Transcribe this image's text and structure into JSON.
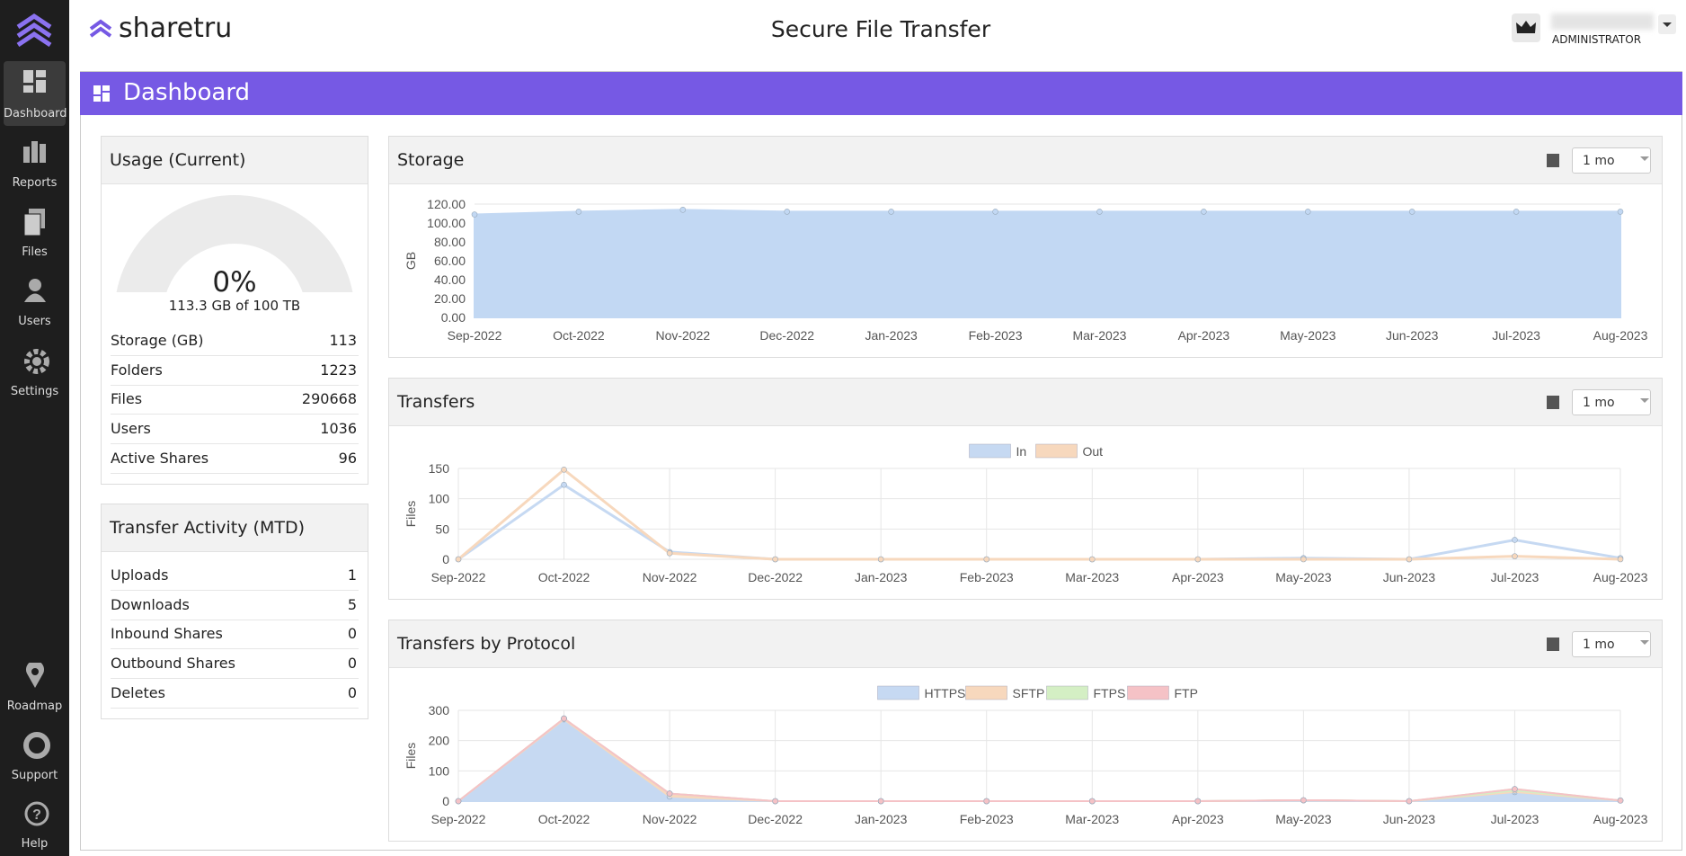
{
  "sidebar": {
    "items": [
      "Dashboard",
      "Reports",
      "Files",
      "Users",
      "Settings"
    ],
    "bottom": [
      "Roadmap",
      "Support",
      "Help"
    ]
  },
  "header": {
    "brand": "sharetru",
    "title": "Secure File Transfer",
    "role": "ADMINISTRATOR"
  },
  "page_title": "Dashboard",
  "usage": {
    "title": "Usage (Current)",
    "percent": "0%",
    "summary": "113.3 GB of 100 TB",
    "rows": [
      {
        "label": "Storage (GB)",
        "value": 113
      },
      {
        "label": "Folders",
        "value": 1223
      },
      {
        "label": "Files",
        "value": 290668
      },
      {
        "label": "Users",
        "value": 1036
      },
      {
        "label": "Active Shares",
        "value": 96
      }
    ]
  },
  "activity": {
    "title": "Transfer Activity (MTD)",
    "rows": [
      {
        "label": "Uploads",
        "value": 1
      },
      {
        "label": "Downloads",
        "value": 5
      },
      {
        "label": "Inbound Shares",
        "value": 0
      },
      {
        "label": "Outbound Shares",
        "value": 0
      },
      {
        "label": "Deletes",
        "value": 0
      }
    ]
  },
  "chart_data": [
    {
      "type": "area",
      "title": "Storage",
      "period": "1 mo",
      "ylabel": "GB",
      "categories": [
        "Sep-2022",
        "Oct-2022",
        "Nov-2022",
        "Dec-2022",
        "Jan-2023",
        "Feb-2023",
        "Mar-2023",
        "Apr-2023",
        "May-2023",
        "Jun-2023",
        "Jul-2023",
        "Aug-2023"
      ],
      "values": [
        109,
        112,
        114,
        112,
        112,
        112,
        112,
        112,
        112,
        112,
        112,
        112
      ],
      "color": "#c2d8f3",
      "ylim": [
        0,
        120
      ],
      "yticks": [
        {
          "value": 0,
          "label": "0.00"
        },
        {
          "value": 20,
          "label": "20.00"
        },
        {
          "value": 40,
          "label": "40.00"
        },
        {
          "value": 60,
          "label": "60.00"
        },
        {
          "value": 80,
          "label": "80.00"
        },
        {
          "value": 100,
          "label": "100.00"
        },
        {
          "value": 120,
          "label": "120.00"
        }
      ],
      "grid": true
    },
    {
      "type": "line",
      "title": "Transfers",
      "period": "1 mo",
      "ylabel": "Files",
      "legend": "top",
      "categories": [
        "Sep-2022",
        "Oct-2022",
        "Nov-2022",
        "Dec-2022",
        "Jan-2023",
        "Feb-2023",
        "Mar-2023",
        "Apr-2023",
        "May-2023",
        "Jun-2023",
        "Jul-2023",
        "Aug-2023"
      ],
      "series": [
        {
          "name": "In",
          "color": "#c6d9f2",
          "values": [
            0,
            123,
            12,
            0,
            0,
            0,
            0,
            0,
            2,
            0,
            32,
            2
          ]
        },
        {
          "name": "Out",
          "color": "#f7d8bd",
          "values": [
            0,
            148,
            10,
            0,
            0,
            0,
            0,
            0,
            0,
            0,
            5,
            0
          ]
        }
      ],
      "ylim": [
        0,
        150
      ],
      "yticks": [
        0,
        50,
        100,
        150
      ],
      "grid": true
    },
    {
      "type": "area",
      "title": "Transfers by Protocol",
      "period": "1 mo",
      "ylabel": "Files",
      "legend": "top",
      "categories": [
        "Sep-2022",
        "Oct-2022",
        "Nov-2022",
        "Dec-2022",
        "Jan-2023",
        "Feb-2023",
        "Mar-2023",
        "Apr-2023",
        "May-2023",
        "Jun-2023",
        "Jul-2023",
        "Aug-2023"
      ],
      "series": [
        {
          "name": "HTTPS",
          "color": "#c6d9f2",
          "values": [
            0,
            270,
            15,
            0,
            0,
            0,
            0,
            0,
            3,
            0,
            30,
            2
          ]
        },
        {
          "name": "SFTP",
          "color": "#f7d8bd",
          "values": [
            0,
            3,
            10,
            0,
            0,
            0,
            0,
            0,
            0,
            0,
            5,
            0
          ]
        },
        {
          "name": "FTPS",
          "color": "#d4efc4",
          "values": [
            0,
            0,
            0,
            0,
            0,
            0,
            0,
            0,
            0,
            0,
            5,
            0
          ]
        },
        {
          "name": "FTP",
          "color": "#f5c2c6",
          "values": [
            0,
            0,
            0,
            0,
            0,
            0,
            0,
            0,
            0,
            0,
            0,
            0
          ]
        }
      ],
      "ylim": [
        0,
        300
      ],
      "yticks": [
        0,
        100,
        200,
        300
      ],
      "grid": true
    }
  ]
}
